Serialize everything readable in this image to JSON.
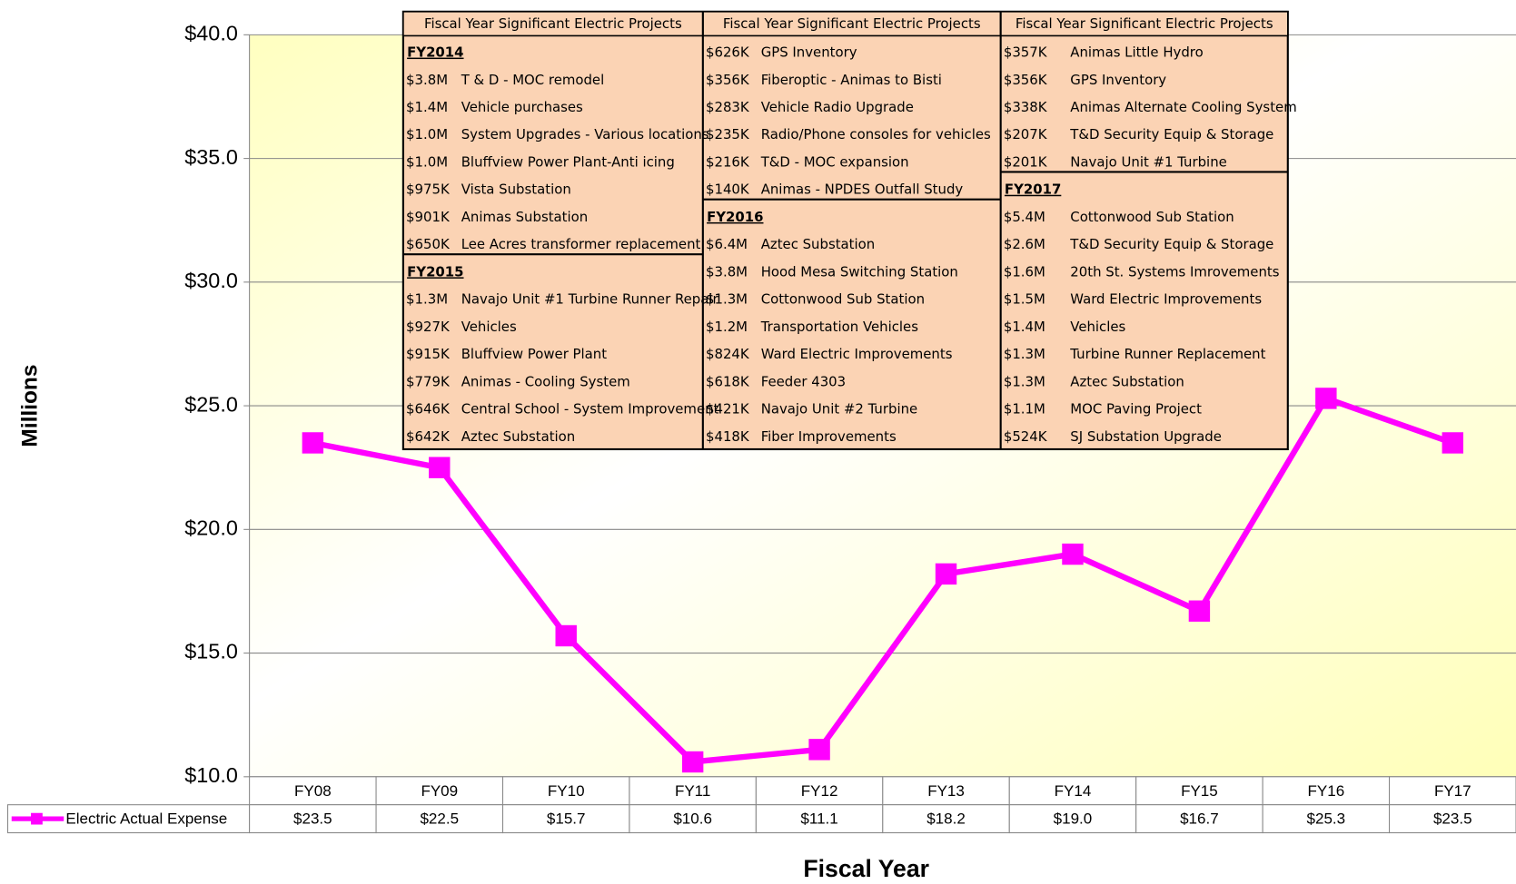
{
  "chart_data": {
    "type": "line",
    "y_label": "Millions",
    "x_label": "Fiscal Year",
    "categories": [
      "FY08",
      "FY09",
      "FY10",
      "FY11",
      "FY12",
      "FY13",
      "FY14",
      "FY15",
      "FY16",
      "FY17"
    ],
    "series": [
      {
        "name": "Electric Actual Expense",
        "color": "#ff00ff",
        "values": [
          23.5,
          22.5,
          15.7,
          10.6,
          11.1,
          18.2,
          19.0,
          16.7,
          25.3,
          23.5
        ],
        "value_labels": [
          "$23.5",
          "$22.5",
          "$15.7",
          "$10.6",
          "$11.1",
          "$18.2",
          "$19.0",
          "$16.7",
          "$25.3",
          "$23.5"
        ]
      }
    ],
    "ylim": [
      10,
      40
    ],
    "yticks": [
      {
        "value": 10,
        "label": "$10.0"
      },
      {
        "value": 15,
        "label": "$15.0"
      },
      {
        "value": 20,
        "label": "$20.0"
      },
      {
        "value": 25,
        "label": "$25.0"
      },
      {
        "value": 30,
        "label": "$30.0"
      },
      {
        "value": 35,
        "label": "$35.0"
      },
      {
        "value": 40,
        "label": "$40.0"
      }
    ],
    "grid": true
  },
  "projects": [
    {
      "header": "Fiscal Year Significant Electric Projects",
      "groups": [
        {
          "year": "FY2014",
          "items": [
            {
              "amount": "$3.8M",
              "name": "T & D - MOC remodel"
            },
            {
              "amount": "$1.4M",
              "name": "Vehicle purchases"
            },
            {
              "amount": "$1.0M",
              "name": "System Upgrades - Various locations"
            },
            {
              "amount": "$1.0M",
              "name": "Bluffview Power Plant-Anti icing"
            },
            {
              "amount": "$975K",
              "name": "Vista Substation"
            },
            {
              "amount": "$901K",
              "name": "Animas Substation"
            },
            {
              "amount": "$650K",
              "name": "Lee Acres transformer replacement"
            }
          ]
        },
        {
          "year": "FY2015",
          "items": [
            {
              "amount": "$1.3M",
              "name": "Navajo Unit #1 Turbine Runner Repair"
            },
            {
              "amount": "$927K",
              "name": "Vehicles"
            },
            {
              "amount": "$915K",
              "name": "Bluffview Power Plant"
            },
            {
              "amount": "$779K",
              "name": "Animas - Cooling System"
            },
            {
              "amount": "$646K",
              "name": "Central School - System Improvement"
            },
            {
              "amount": "$642K",
              "name": "Aztec Substation"
            }
          ]
        }
      ]
    },
    {
      "header": "Fiscal Year Significant Electric Projects",
      "groups": [
        {
          "items": [
            {
              "amount": "$626K",
              "name": "GPS Inventory"
            },
            {
              "amount": "$356K",
              "name": "Fiberoptic - Animas to Bisti"
            },
            {
              "amount": "$283K",
              "name": "Vehicle Radio Upgrade"
            },
            {
              "amount": "$235K",
              "name": "Radio/Phone consoles for vehicles"
            },
            {
              "amount": "$216K",
              "name": "T&D - MOC expansion"
            },
            {
              "amount": "$140K",
              "name": "Animas - NPDES Outfall Study"
            }
          ]
        },
        {
          "year": "FY2016",
          "items": [
            {
              "amount": "$6.4M",
              "name": "Aztec Substation"
            },
            {
              "amount": "$3.8M",
              "name": "Hood Mesa Switching Station"
            },
            {
              "amount": "$1.3M",
              "name": "Cottonwood Sub Station"
            },
            {
              "amount": "$1.2M",
              "name": "Transportation Vehicles"
            },
            {
              "amount": "$824K",
              "name": "Ward Electric Improvements"
            },
            {
              "amount": "$618K",
              "name": "Feeder 4303"
            },
            {
              "amount": "$421K",
              "name": "Navajo Unit #2 Turbine"
            },
            {
              "amount": "$418K",
              "name": "Fiber Improvements"
            }
          ]
        }
      ]
    },
    {
      "header": "Fiscal Year Significant Electric Projects",
      "groups": [
        {
          "items": [
            {
              "amount": "$357K",
              "name": "Animas Little Hydro"
            },
            {
              "amount": "$356K",
              "name": "GPS Inventory"
            },
            {
              "amount": "$338K",
              "name": "Animas Alternate Cooling System"
            },
            {
              "amount": "$207K",
              "name": "T&D Security Equip & Storage"
            },
            {
              "amount": "$201K",
              "name": "Navajo Unit #1 Turbine"
            }
          ]
        },
        {
          "year": "FY2017",
          "items": [
            {
              "amount": "$5.4M",
              "name": "Cottonwood Sub Station"
            },
            {
              "amount": "$2.6M",
              "name": "T&D Security Equip & Storage"
            },
            {
              "amount": "$1.6M",
              "name": "20th St. Systems Imrovements"
            },
            {
              "amount": "$1.5M",
              "name": "Ward Electric Improvements"
            },
            {
              "amount": "$1.4M",
              "name": "Vehicles"
            },
            {
              "amount": "$1.3M",
              "name": "Turbine Runner Replacement"
            },
            {
              "amount": "$1.3M",
              "name": "Aztec Substation"
            },
            {
              "amount": "$1.1M",
              "name": "MOC Paving Project"
            },
            {
              "amount": "$524K",
              "name": "SJ Substation Upgrade"
            }
          ]
        }
      ]
    }
  ]
}
